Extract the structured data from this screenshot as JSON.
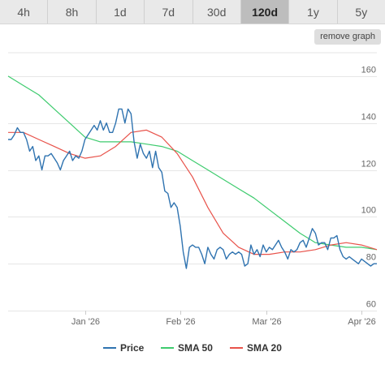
{
  "tabs": [
    {
      "label": "4h",
      "active": false
    },
    {
      "label": "8h",
      "active": false
    },
    {
      "label": "1d",
      "active": false
    },
    {
      "label": "7d",
      "active": false
    },
    {
      "label": "30d",
      "active": false
    },
    {
      "label": "120d",
      "active": true
    },
    {
      "label": "1y",
      "active": false
    },
    {
      "label": "5y",
      "active": false
    }
  ],
  "remove_graph_label": "remove graph",
  "colors": {
    "price": "#2f73b0",
    "sma50": "#3ecb6e",
    "sma20": "#e8524a",
    "grid": "#e6e6e6",
    "active_tab": "#bdbdbd"
  },
  "chart_data": {
    "type": "line",
    "title": "",
    "xlabel": "",
    "ylabel": "",
    "ylim": [
      60,
      170
    ],
    "yticks": [
      60,
      80,
      100,
      120,
      140,
      160
    ],
    "xlim": [
      "2025-12-07",
      "2026-04-06"
    ],
    "xticks": [
      {
        "date": "2026-01-01",
        "label": "Jan '26"
      },
      {
        "date": "2026-02-01",
        "label": "Feb '26"
      },
      {
        "date": "2026-03-01",
        "label": "Mar '26"
      },
      {
        "date": "2026-04-01",
        "label": "Apr '26"
      }
    ],
    "grid": true,
    "legend_position": "bottom",
    "series": [
      {
        "name": "Price",
        "color_key": "price",
        "points": [
          [
            "2025-12-07",
            133
          ],
          [
            "2025-12-08",
            133
          ],
          [
            "2025-12-09",
            135
          ],
          [
            "2025-12-10",
            138
          ],
          [
            "2025-12-11",
            136
          ],
          [
            "2025-12-12",
            136
          ],
          [
            "2025-12-13",
            133
          ],
          [
            "2025-12-14",
            128
          ],
          [
            "2025-12-15",
            130
          ],
          [
            "2025-12-16",
            124
          ],
          [
            "2025-12-17",
            126
          ],
          [
            "2025-12-18",
            120
          ],
          [
            "2025-12-19",
            126
          ],
          [
            "2025-12-20",
            126
          ],
          [
            "2025-12-21",
            127
          ],
          [
            "2025-12-22",
            125
          ],
          [
            "2025-12-23",
            123
          ],
          [
            "2025-12-24",
            120
          ],
          [
            "2025-12-25",
            124
          ],
          [
            "2025-12-26",
            126
          ],
          [
            "2025-12-27",
            128
          ],
          [
            "2025-12-28",
            124
          ],
          [
            "2025-12-29",
            126
          ],
          [
            "2025-12-30",
            125
          ],
          [
            "2025-12-31",
            128
          ],
          [
            "2026-01-01",
            133
          ],
          [
            "2026-01-02",
            135
          ],
          [
            "2026-01-03",
            137
          ],
          [
            "2026-01-04",
            139
          ],
          [
            "2026-01-05",
            137
          ],
          [
            "2026-01-06",
            141
          ],
          [
            "2026-01-07",
            137
          ],
          [
            "2026-01-08",
            140
          ],
          [
            "2026-01-09",
            136
          ],
          [
            "2026-01-10",
            136
          ],
          [
            "2026-01-11",
            140
          ],
          [
            "2026-01-12",
            146
          ],
          [
            "2026-01-13",
            146
          ],
          [
            "2026-01-14",
            140
          ],
          [
            "2026-01-15",
            146
          ],
          [
            "2026-01-16",
            144
          ],
          [
            "2026-01-17",
            132
          ],
          [
            "2026-01-18",
            125
          ],
          [
            "2026-01-19",
            131
          ],
          [
            "2026-01-20",
            127
          ],
          [
            "2026-01-21",
            125
          ],
          [
            "2026-01-22",
            128
          ],
          [
            "2026-01-23",
            121
          ],
          [
            "2026-01-24",
            128
          ],
          [
            "2026-01-25",
            121
          ],
          [
            "2026-01-26",
            119
          ],
          [
            "2026-01-27",
            111
          ],
          [
            "2026-01-28",
            110
          ],
          [
            "2026-01-29",
            104
          ],
          [
            "2026-01-30",
            106
          ],
          [
            "2026-01-31",
            104
          ],
          [
            "2026-02-01",
            96
          ],
          [
            "2026-02-02",
            85
          ],
          [
            "2026-02-03",
            78
          ],
          [
            "2026-02-04",
            87
          ],
          [
            "2026-02-05",
            88
          ],
          [
            "2026-02-06",
            87
          ],
          [
            "2026-02-07",
            87
          ],
          [
            "2026-02-08",
            84
          ],
          [
            "2026-02-09",
            80
          ],
          [
            "2026-02-10",
            87
          ],
          [
            "2026-02-11",
            84
          ],
          [
            "2026-02-12",
            82
          ],
          [
            "2026-02-13",
            86
          ],
          [
            "2026-02-14",
            87
          ],
          [
            "2026-02-15",
            86
          ],
          [
            "2026-02-16",
            82
          ],
          [
            "2026-02-17",
            84
          ],
          [
            "2026-02-18",
            85
          ],
          [
            "2026-02-19",
            84
          ],
          [
            "2026-02-20",
            85
          ],
          [
            "2026-02-21",
            84
          ],
          [
            "2026-02-22",
            79
          ],
          [
            "2026-02-23",
            80
          ],
          [
            "2026-02-24",
            88
          ],
          [
            "2026-02-25",
            84
          ],
          [
            "2026-02-26",
            86
          ],
          [
            "2026-02-27",
            83
          ],
          [
            "2026-02-28",
            88
          ],
          [
            "2026-03-01",
            85
          ],
          [
            "2026-03-02",
            87
          ],
          [
            "2026-03-03",
            86
          ],
          [
            "2026-03-04",
            88
          ],
          [
            "2026-03-05",
            90
          ],
          [
            "2026-03-06",
            87
          ],
          [
            "2026-03-07",
            85
          ],
          [
            "2026-03-08",
            82
          ],
          [
            "2026-03-09",
            86
          ],
          [
            "2026-03-10",
            85
          ],
          [
            "2026-03-11",
            86
          ],
          [
            "2026-03-12",
            89
          ],
          [
            "2026-03-13",
            90
          ],
          [
            "2026-03-14",
            87
          ],
          [
            "2026-03-15",
            91
          ],
          [
            "2026-03-16",
            95
          ],
          [
            "2026-03-17",
            93
          ],
          [
            "2026-03-18",
            88
          ],
          [
            "2026-03-19",
            89
          ],
          [
            "2026-03-20",
            89
          ],
          [
            "2026-03-21",
            86
          ],
          [
            "2026-03-22",
            91
          ],
          [
            "2026-03-23",
            91
          ],
          [
            "2026-03-24",
            92
          ],
          [
            "2026-03-25",
            86
          ],
          [
            "2026-03-26",
            83
          ],
          [
            "2026-03-27",
            82
          ],
          [
            "2026-03-28",
            83
          ],
          [
            "2026-03-29",
            82
          ],
          [
            "2026-03-30",
            81
          ],
          [
            "2026-03-31",
            80
          ],
          [
            "2026-04-01",
            82
          ],
          [
            "2026-04-02",
            81
          ],
          [
            "2026-04-03",
            80
          ],
          [
            "2026-04-04",
            79
          ],
          [
            "2026-04-05",
            80
          ],
          [
            "2026-04-06",
            80
          ]
        ]
      },
      {
        "name": "SMA 50",
        "color_key": "sma50",
        "points": [
          [
            "2025-12-07",
            160
          ],
          [
            "2025-12-12",
            156
          ],
          [
            "2025-12-17",
            152
          ],
          [
            "2025-12-22",
            146
          ],
          [
            "2025-12-27",
            140
          ],
          [
            "2026-01-01",
            134
          ],
          [
            "2026-01-06",
            132
          ],
          [
            "2026-01-11",
            132
          ],
          [
            "2026-01-16",
            132
          ],
          [
            "2026-01-21",
            131
          ],
          [
            "2026-01-26",
            130
          ],
          [
            "2026-01-31",
            128
          ],
          [
            "2026-02-05",
            124
          ],
          [
            "2026-02-10",
            120
          ],
          [
            "2026-02-15",
            116
          ],
          [
            "2026-02-20",
            112
          ],
          [
            "2026-02-25",
            108
          ],
          [
            "2026-03-02",
            103
          ],
          [
            "2026-03-07",
            98
          ],
          [
            "2026-03-12",
            93
          ],
          [
            "2026-03-17",
            89
          ],
          [
            "2026-03-22",
            88
          ],
          [
            "2026-03-27",
            87
          ],
          [
            "2026-04-01",
            87
          ],
          [
            "2026-04-06",
            86
          ]
        ]
      },
      {
        "name": "SMA 20",
        "color_key": "sma20",
        "points": [
          [
            "2025-12-07",
            136
          ],
          [
            "2025-12-12",
            136
          ],
          [
            "2025-12-17",
            133
          ],
          [
            "2025-12-22",
            130
          ],
          [
            "2025-12-27",
            127
          ],
          [
            "2026-01-01",
            125
          ],
          [
            "2026-01-06",
            126
          ],
          [
            "2026-01-11",
            130
          ],
          [
            "2026-01-16",
            136
          ],
          [
            "2026-01-21",
            137
          ],
          [
            "2026-01-26",
            134
          ],
          [
            "2026-01-31",
            127
          ],
          [
            "2026-02-05",
            117
          ],
          [
            "2026-02-10",
            104
          ],
          [
            "2026-02-15",
            93
          ],
          [
            "2026-02-20",
            87
          ],
          [
            "2026-02-25",
            84
          ],
          [
            "2026-03-02",
            84
          ],
          [
            "2026-03-07",
            85
          ],
          [
            "2026-03-12",
            85
          ],
          [
            "2026-03-17",
            86
          ],
          [
            "2026-03-22",
            88
          ],
          [
            "2026-03-27",
            89
          ],
          [
            "2026-04-01",
            88
          ],
          [
            "2026-04-06",
            86
          ]
        ]
      }
    ]
  }
}
